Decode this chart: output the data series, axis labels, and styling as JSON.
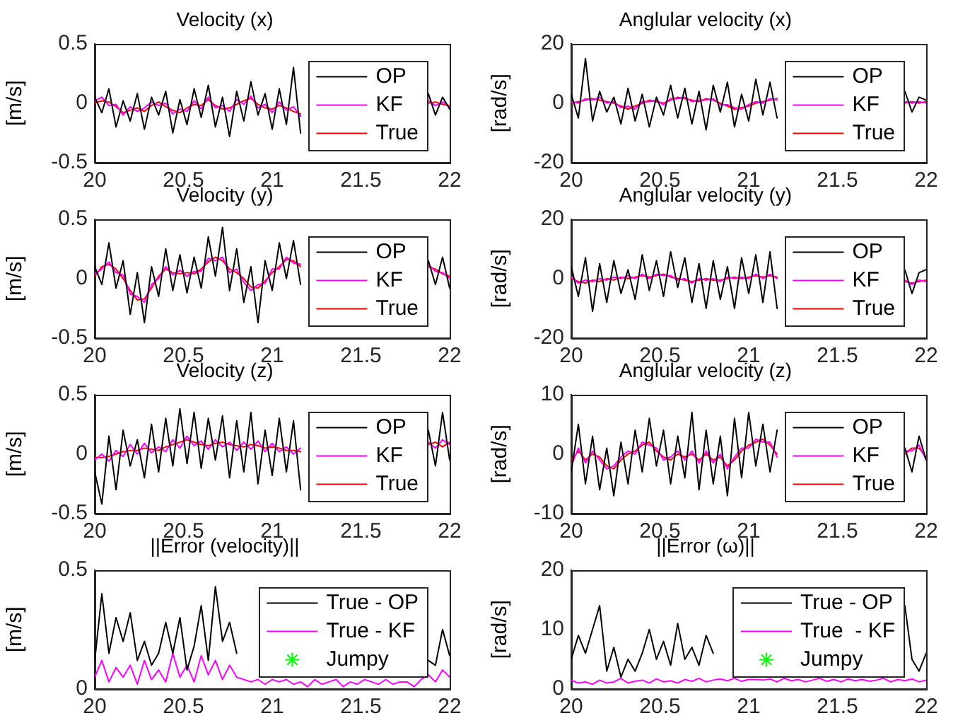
{
  "chart_data": [
    {
      "type": "line",
      "title": "Velocity (x)",
      "ylabel": "[m/s]",
      "legend": "right",
      "marker": "none",
      "x": [
        20,
        20.04,
        20.08,
        20.12,
        20.16,
        20.2,
        20.24,
        20.28,
        20.32,
        20.36,
        20.4,
        20.44,
        20.48,
        20.52,
        20.56,
        20.6,
        20.64,
        20.68,
        20.72,
        20.76,
        20.8,
        20.84,
        20.88,
        20.92,
        20.96,
        21,
        21.04,
        21.08,
        21.12,
        21.16,
        21.2,
        21.24,
        21.28,
        21.32,
        21.36,
        21.4,
        21.44,
        21.48,
        21.52,
        21.56,
        21.6,
        21.64,
        21.68,
        21.72,
        21.76,
        21.8,
        21.84,
        21.88,
        21.92,
        21.96,
        22
      ],
      "xlim": [
        20,
        22
      ],
      "xticks": [
        20,
        20.5,
        21,
        21.5,
        22
      ],
      "ylim": [
        -0.5,
        0.5
      ],
      "yticks": [
        -0.5,
        0,
        0.5
      ],
      "series": [
        {
          "name": "OP",
          "color": "#000000",
          "values": [
            0.05,
            -0.08,
            0.12,
            -0.2,
            0.02,
            -0.15,
            0.08,
            -0.22,
            0.05,
            -0.1,
            0.1,
            -0.25,
            0.03,
            -0.18,
            0.12,
            -0.12,
            0.15,
            -0.2,
            0.05,
            -0.28,
            0.1,
            -0.15,
            0.18,
            -0.1,
            0.08,
            -0.22,
            0.12,
            -0.18,
            0.3,
            -0.25,
            null,
            null,
            null,
            null,
            null,
            null,
            null,
            null,
            null,
            null,
            null,
            null,
            null,
            null,
            null,
            null,
            null,
            0.08,
            -0.1,
            0.05,
            -0.05
          ]
        },
        {
          "name": "KF",
          "color": "#ff00ff",
          "values": [
            0.02,
            0.05,
            -0.02,
            -0.01,
            -0.1,
            -0.03,
            -0.07,
            -0.04,
            0.01,
            -0.02,
            0,
            -0.09,
            -0.05,
            -0.07,
            0.02,
            -0.05,
            0.05,
            -0.04,
            -0.02,
            -0.07,
            0.03,
            -0.01,
            0.06,
            -0.04,
            -0.01,
            -0.08,
            0.01,
            -0.06,
            -0.03,
            -0.11,
            null,
            null,
            null,
            null,
            null,
            null,
            null,
            null,
            null,
            null,
            null,
            null,
            null,
            null,
            null,
            null,
            null,
            0.02,
            -0.02,
            0.01,
            -0.03
          ]
        },
        {
          "name": "True",
          "color": "#ff0000",
          "values": [
            0,
            0.02,
            0.01,
            -0.03,
            -0.08,
            -0.06,
            -0.04,
            -0.07,
            -0.02,
            0.01,
            -0.03,
            -0.06,
            -0.08,
            -0.04,
            -0.01,
            -0.02,
            0.03,
            -0.02,
            -0.05,
            -0.04,
            -0.01,
            0.02,
            0.04,
            -0.01,
            -0.04,
            -0.05,
            -0.02,
            -0.04,
            -0.07,
            -0.09,
            null,
            null,
            null,
            null,
            null,
            null,
            null,
            null,
            null,
            null,
            null,
            null,
            null,
            null,
            null,
            null,
            null,
            0,
            0.01,
            -0.01,
            -0.02
          ]
        }
      ]
    },
    {
      "type": "line",
      "title": "Anglular velocity (x)",
      "ylabel": "[rad/s]",
      "legend": "right",
      "marker": "none",
      "x": [
        20,
        20.04,
        20.08,
        20.12,
        20.16,
        20.2,
        20.24,
        20.28,
        20.32,
        20.36,
        20.4,
        20.44,
        20.48,
        20.52,
        20.56,
        20.6,
        20.64,
        20.68,
        20.72,
        20.76,
        20.8,
        20.84,
        20.88,
        20.92,
        20.96,
        21,
        21.04,
        21.08,
        21.12,
        21.16,
        21.2,
        21.24,
        21.28,
        21.32,
        21.36,
        21.4,
        21.44,
        21.48,
        21.52,
        21.56,
        21.6,
        21.64,
        21.68,
        21.72,
        21.76,
        21.8,
        21.84,
        21.88,
        21.92,
        21.96,
        22
      ],
      "xlim": [
        20,
        22
      ],
      "xticks": [
        20,
        20.5,
        21,
        21.5,
        22
      ],
      "ylim": [
        -20,
        20
      ],
      "yticks": [
        -20,
        0,
        20
      ],
      "series": [
        {
          "name": "OP",
          "color": "#000000",
          "values": [
            3,
            -5,
            15,
            -6,
            4,
            -3,
            2,
            -7,
            5,
            -6,
            3,
            -8,
            2,
            -4,
            6,
            -5,
            5,
            -7,
            4,
            -9,
            6,
            -3,
            7,
            -8,
            3,
            -6,
            8,
            -4,
            7,
            -5,
            null,
            null,
            null,
            null,
            null,
            null,
            null,
            null,
            null,
            null,
            null,
            null,
            null,
            null,
            null,
            null,
            null,
            4,
            -3,
            2,
            1
          ]
        },
        {
          "name": "KF",
          "color": "#ff00ff",
          "values": [
            0.5,
            0,
            1.5,
            1,
            2,
            0,
            0.5,
            -1.5,
            -1,
            -2,
            0.5,
            0.5,
            1,
            -0.5,
            1.5,
            1.5,
            2,
            0.5,
            1,
            1,
            1.5,
            -0.5,
            -0.5,
            -1.5,
            -2,
            -0.5,
            0.5,
            0,
            1.5,
            1,
            null,
            null,
            null,
            null,
            null,
            null,
            null,
            null,
            null,
            null,
            null,
            null,
            null,
            null,
            null,
            null,
            null,
            0.5,
            0,
            0.5,
            0
          ]
        },
        {
          "name": "True",
          "color": "#ff0000",
          "values": [
            0,
            0.5,
            1,
            1.5,
            1,
            0.5,
            0,
            -1,
            -2,
            -1,
            0,
            1,
            0.5,
            0,
            1,
            2,
            1.5,
            1,
            0.5,
            1.5,
            1,
            0,
            -1,
            -2,
            -1.5,
            -1,
            0,
            0.5,
            1,
            1.5,
            null,
            null,
            null,
            null,
            null,
            null,
            null,
            null,
            null,
            null,
            null,
            null,
            null,
            null,
            null,
            null,
            null,
            0,
            0.5,
            0,
            0.5
          ]
        }
      ]
    },
    {
      "type": "line",
      "title": "Velocity (y)",
      "ylabel": "[m/s]",
      "legend": "right",
      "marker": "none",
      "x": [
        20,
        20.04,
        20.08,
        20.12,
        20.16,
        20.2,
        20.24,
        20.28,
        20.32,
        20.36,
        20.4,
        20.44,
        20.48,
        20.52,
        20.56,
        20.6,
        20.64,
        20.68,
        20.72,
        20.76,
        20.8,
        20.84,
        20.88,
        20.92,
        20.96,
        21,
        21.04,
        21.08,
        21.12,
        21.16,
        21.2,
        21.24,
        21.28,
        21.32,
        21.36,
        21.4,
        21.44,
        21.48,
        21.52,
        21.56,
        21.6,
        21.64,
        21.68,
        21.72,
        21.76,
        21.8,
        21.84,
        21.88,
        21.92,
        21.96,
        22
      ],
      "xlim": [
        20,
        22
      ],
      "xticks": [
        20,
        20.5,
        21,
        21.5,
        22
      ],
      "ylim": [
        -0.5,
        0.5
      ],
      "yticks": [
        -0.5,
        0,
        0.5
      ],
      "series": [
        {
          "name": "OP",
          "color": "#000000",
          "values": [
            0.1,
            -0.05,
            0.3,
            -0.08,
            0.15,
            -0.3,
            0.05,
            -0.37,
            0.1,
            -0.15,
            0.25,
            -0.1,
            0.2,
            -0.12,
            0.18,
            -0.08,
            0.35,
            0.02,
            0.43,
            -0.1,
            0.25,
            -0.2,
            0.1,
            -0.37,
            0.15,
            -0.1,
            0.3,
            0,
            0.32,
            -0.05,
            null,
            null,
            null,
            null,
            null,
            null,
            null,
            null,
            null,
            null,
            null,
            null,
            null,
            null,
            null,
            null,
            null,
            0.15,
            -0.05,
            0.18,
            -0.08
          ]
        },
        {
          "name": "KF",
          "color": "#ff00ff",
          "values": [
            0.04,
            0.08,
            0.14,
            0.05,
            0.03,
            -0.13,
            -0.15,
            -0.2,
            -0.05,
            0,
            0.1,
            0.03,
            0.07,
            0.02,
            0.06,
            0.06,
            0.17,
            0.15,
            0.18,
            0.05,
            0.08,
            -0.03,
            -0.1,
            -0.05,
            -0.04,
            0.08,
            0.08,
            0.18,
            0.13,
            0.12,
            null,
            null,
            null,
            null,
            null,
            null,
            null,
            null,
            null,
            null,
            null,
            null,
            null,
            null,
            null,
            null,
            null,
            0.12,
            0.06,
            0.05,
            0
          ]
        },
        {
          "name": "True",
          "color": "#ff0000",
          "values": [
            0.02,
            0.1,
            0.12,
            0.08,
            0,
            -0.1,
            -0.18,
            -0.17,
            -0.08,
            0.02,
            0.08,
            0.05,
            0.04,
            0.05,
            0.04,
            0.08,
            0.14,
            0.18,
            0.15,
            0.08,
            0.05,
            0,
            -0.07,
            -0.08,
            -0.02,
            0.05,
            0.1,
            0.16,
            0.15,
            0.1,
            null,
            null,
            null,
            null,
            null,
            null,
            null,
            null,
            null,
            null,
            null,
            null,
            null,
            null,
            null,
            null,
            null,
            0.1,
            0.08,
            0.04,
            0.02
          ]
        }
      ]
    },
    {
      "type": "line",
      "title": "Anglular velocity (y)",
      "ylabel": "[rad/s]",
      "legend": "right",
      "marker": "none",
      "x": [
        20,
        20.04,
        20.08,
        20.12,
        20.16,
        20.2,
        20.24,
        20.28,
        20.32,
        20.36,
        20.4,
        20.44,
        20.48,
        20.52,
        20.56,
        20.6,
        20.64,
        20.68,
        20.72,
        20.76,
        20.8,
        20.84,
        20.88,
        20.92,
        20.96,
        21,
        21.04,
        21.08,
        21.12,
        21.16,
        21.2,
        21.24,
        21.28,
        21.32,
        21.36,
        21.4,
        21.44,
        21.48,
        21.52,
        21.56,
        21.6,
        21.64,
        21.68,
        21.72,
        21.76,
        21.8,
        21.84,
        21.88,
        21.92,
        21.96,
        22
      ],
      "xlim": [
        20,
        22
      ],
      "xticks": [
        20,
        20.5,
        21,
        21.5,
        22
      ],
      "ylim": [
        -20,
        20
      ],
      "yticks": [
        -20,
        0,
        20
      ],
      "series": [
        {
          "name": "OP",
          "color": "#000000",
          "values": [
            4,
            -6,
            7,
            -11,
            5,
            -8,
            6,
            -5,
            3,
            -7,
            8,
            -4,
            6,
            -6,
            9,
            -3,
            7,
            -8,
            5,
            -10,
            6,
            -7,
            4,
            -10,
            7,
            -5,
            8,
            -8,
            9,
            -10,
            null,
            null,
            null,
            null,
            null,
            null,
            null,
            null,
            null,
            null,
            null,
            null,
            null,
            null,
            null,
            null,
            null,
            3,
            -5,
            2,
            3
          ]
        },
        {
          "name": "KF",
          "color": "#ff00ff",
          "values": [
            0.5,
            -1.5,
            -0.5,
            -1,
            0,
            -0.5,
            0.5,
            0,
            1,
            0,
            1.5,
            0,
            1.5,
            1,
            1,
            -0.5,
            0,
            -1.5,
            0,
            -0.5,
            0,
            -1,
            0.5,
            0,
            0.5,
            0,
            1.5,
            0,
            1.5,
            0,
            null,
            null,
            null,
            null,
            null,
            null,
            null,
            null,
            null,
            null,
            null,
            null,
            null,
            null,
            null,
            null,
            null,
            -0.5,
            -2,
            -0.5,
            -1
          ]
        },
        {
          "name": "True",
          "color": "#ff0000",
          "values": [
            0,
            -1,
            -1.5,
            -0.5,
            -1,
            0,
            -0.5,
            0.5,
            0,
            0.5,
            1,
            0.5,
            1,
            1.5,
            0.5,
            0,
            -0.5,
            -1,
            -0.5,
            0,
            -0.5,
            -0.5,
            0,
            0.5,
            0,
            0.5,
            1,
            0.5,
            1,
            0.5,
            null,
            null,
            null,
            null,
            null,
            null,
            null,
            null,
            null,
            null,
            null,
            null,
            null,
            null,
            null,
            null,
            null,
            -1,
            -1.5,
            -1,
            -0.5
          ]
        }
      ]
    },
    {
      "type": "line",
      "title": "Velocity (z)",
      "ylabel": "[m/s]",
      "legend": "right",
      "marker": "none",
      "x": [
        20,
        20.04,
        20.08,
        20.12,
        20.16,
        20.2,
        20.24,
        20.28,
        20.32,
        20.36,
        20.4,
        20.44,
        20.48,
        20.52,
        20.56,
        20.6,
        20.64,
        20.68,
        20.72,
        20.76,
        20.8,
        20.84,
        20.88,
        20.92,
        20.96,
        21,
        21.04,
        21.08,
        21.12,
        21.16,
        21.2,
        21.24,
        21.28,
        21.32,
        21.36,
        21.4,
        21.44,
        21.48,
        21.52,
        21.56,
        21.6,
        21.64,
        21.68,
        21.72,
        21.76,
        21.8,
        21.84,
        21.88,
        21.92,
        21.96,
        22
      ],
      "xlim": [
        20,
        22
      ],
      "xticks": [
        20,
        20.5,
        21,
        21.5,
        22
      ],
      "ylim": [
        -0.5,
        0.5
      ],
      "yticks": [
        -0.5,
        0,
        0.5
      ],
      "series": [
        {
          "name": "OP",
          "color": "#000000",
          "values": [
            -0.15,
            -0.42,
            0.15,
            -0.3,
            0.2,
            -0.1,
            0.12,
            -0.2,
            0.25,
            -0.15,
            0.3,
            -0.1,
            0.38,
            -0.08,
            0.35,
            -0.12,
            0.3,
            -0.05,
            0.32,
            -0.2,
            0.28,
            -0.15,
            0.35,
            -0.25,
            0.2,
            -0.18,
            0.3,
            -0.15,
            0.28,
            -0.3,
            null,
            null,
            null,
            null,
            null,
            null,
            null,
            null,
            null,
            null,
            null,
            null,
            null,
            null,
            null,
            null,
            null,
            0.2,
            -0.1,
            0.35,
            -0.05
          ]
        },
        {
          "name": "KF",
          "color": "#ff00ff",
          "values": [
            -0.05,
            0,
            -0.06,
            0.03,
            -0.02,
            0.08,
            0,
            0.09,
            0.01,
            0.06,
            0.02,
            0.12,
            0.05,
            0.15,
            0.07,
            0.11,
            0.04,
            0.12,
            0.06,
            0.1,
            0.03,
            0.1,
            0.04,
            0.11,
            0.02,
            0.09,
            0.02,
            0.06,
            0,
            0.05,
            null,
            null,
            null,
            null,
            null,
            null,
            null,
            null,
            null,
            null,
            null,
            null,
            null,
            null,
            null,
            null,
            null,
            0.1,
            0.05,
            0.12,
            0.08
          ]
        },
        {
          "name": "True",
          "color": "#ff0000",
          "values": [
            -0.03,
            -0.03,
            -0.02,
            0,
            0.02,
            0.03,
            0.03,
            0.05,
            0.04,
            0.03,
            0.06,
            0.08,
            0.1,
            0.12,
            0.1,
            0.08,
            0.07,
            0.09,
            0.1,
            0.08,
            0.07,
            0.06,
            0.08,
            0.07,
            0.05,
            0.06,
            0.05,
            0.03,
            0.03,
            0.02,
            null,
            null,
            null,
            null,
            null,
            null,
            null,
            null,
            null,
            null,
            null,
            null,
            null,
            null,
            null,
            null,
            null,
            0.08,
            0.1,
            0.06,
            0.1
          ]
        }
      ]
    },
    {
      "type": "line",
      "title": "Anglular velocity (z)",
      "ylabel": "[rad/s]",
      "legend": "right",
      "marker": "none",
      "x": [
        20,
        20.04,
        20.08,
        20.12,
        20.16,
        20.2,
        20.24,
        20.28,
        20.32,
        20.36,
        20.4,
        20.44,
        20.48,
        20.52,
        20.56,
        20.6,
        20.64,
        20.68,
        20.72,
        20.76,
        20.8,
        20.84,
        20.88,
        20.92,
        20.96,
        21,
        21.04,
        21.08,
        21.12,
        21.16,
        21.2,
        21.24,
        21.28,
        21.32,
        21.36,
        21.4,
        21.44,
        21.48,
        21.52,
        21.56,
        21.6,
        21.64,
        21.68,
        21.72,
        21.76,
        21.8,
        21.84,
        21.88,
        21.92,
        21.96,
        22
      ],
      "xlim": [
        20,
        22
      ],
      "xticks": [
        20,
        20.5,
        21,
        21.5,
        22
      ],
      "ylim": [
        -10,
        10
      ],
      "yticks": [
        -10,
        0,
        10
      ],
      "series": [
        {
          "name": "OP",
          "color": "#000000",
          "values": [
            -3,
            5,
            -5,
            3,
            -6,
            1,
            -7,
            2,
            -5,
            4,
            -3,
            6,
            -2,
            4,
            -5,
            3,
            -4,
            7,
            -6,
            4,
            -5,
            3,
            -7,
            6,
            -4,
            7,
            -2,
            5,
            -3,
            4,
            null,
            null,
            null,
            null,
            null,
            null,
            null,
            null,
            null,
            null,
            null,
            null,
            null,
            null,
            null,
            null,
            null,
            1,
            -3,
            3,
            -1
          ]
        },
        {
          "name": "KF",
          "color": "#ff00ff",
          "values": [
            -2,
            1,
            -1.5,
            0.5,
            -1,
            -2.5,
            -2,
            -0.5,
            0.5,
            0,
            2,
            1.5,
            1,
            -1,
            -0.5,
            0.5,
            -1,
            0.5,
            -1.5,
            0.5,
            -1.5,
            0,
            -2.5,
            -0.5,
            1,
            1,
            2.5,
            2,
            2,
            -0.5,
            null,
            null,
            null,
            null,
            null,
            null,
            null,
            null,
            null,
            null,
            null,
            null,
            null,
            null,
            null,
            null,
            null,
            0.5,
            0.5,
            1.5,
            -1
          ]
        },
        {
          "name": "True",
          "color": "#ff0000",
          "values": [
            -1,
            0.5,
            -1,
            0,
            -0.5,
            -2,
            -2.5,
            -1,
            0,
            0.5,
            1.5,
            2,
            0.5,
            -0.5,
            -1,
            0,
            -0.5,
            0,
            -1,
            0,
            -1,
            -0.5,
            -2,
            -1,
            0.5,
            1.5,
            2,
            2.5,
            1.5,
            0,
            null,
            null,
            null,
            null,
            null,
            null,
            null,
            null,
            null,
            null,
            null,
            null,
            null,
            null,
            null,
            null,
            null,
            0,
            1,
            1,
            -0.5
          ]
        }
      ]
    },
    {
      "type": "line",
      "title": "||Error (velocity)||",
      "ylabel": "[m/s]",
      "legend": "right",
      "marker": "none",
      "x": [
        20,
        20.04,
        20.08,
        20.12,
        20.16,
        20.2,
        20.24,
        20.28,
        20.32,
        20.36,
        20.4,
        20.44,
        20.48,
        20.52,
        20.56,
        20.6,
        20.64,
        20.68,
        20.72,
        20.76,
        20.8,
        20.84,
        20.88,
        20.92,
        20.96,
        21,
        21.04,
        21.08,
        21.12,
        21.16,
        21.2,
        21.24,
        21.28,
        21.32,
        21.36,
        21.4,
        21.44,
        21.48,
        21.52,
        21.56,
        21.6,
        21.64,
        21.68,
        21.72,
        21.76,
        21.8,
        21.84,
        21.88,
        21.92,
        21.96,
        22
      ],
      "xlim": [
        20,
        22
      ],
      "xticks": [
        20,
        20.5,
        21,
        21.5,
        22
      ],
      "ylim": [
        0,
        0.5
      ],
      "yticks": [
        0,
        0.5
      ],
      "series": [
        {
          "name": "True - OP",
          "color": "#000000",
          "values": [
            0.12,
            0.4,
            0.15,
            0.3,
            0.2,
            0.32,
            0.12,
            0.2,
            0.1,
            0.15,
            0.28,
            0.15,
            0.3,
            0.08,
            0.18,
            0.35,
            0.12,
            0.43,
            0.2,
            0.28,
            0.15,
            null,
            null,
            null,
            null,
            null,
            null,
            null,
            null,
            null,
            null,
            null,
            null,
            null,
            null,
            null,
            null,
            null,
            null,
            null,
            null,
            null,
            null,
            null,
            null,
            null,
            null,
            0.12,
            0.1,
            0.25,
            0.14
          ]
        },
        {
          "name": "True - KF",
          "color": "#ff00ff",
          "values": [
            0.05,
            0.12,
            0.03,
            0.09,
            0.05,
            0.1,
            0.02,
            0.12,
            0.04,
            0.08,
            0.03,
            0.15,
            0.05,
            0.1,
            0.03,
            0.14,
            0.06,
            0.12,
            0.04,
            0.1,
            0.05,
            0.04,
            0.03,
            0.04,
            0.02,
            0.04,
            0.03,
            0.04,
            0.02,
            0.03,
            0.01,
            0.04,
            0.02,
            0.03,
            0.04,
            0.01,
            0.03,
            0.02,
            0.04,
            0.03,
            0.02,
            0.04,
            0.02,
            0.03,
            0.03,
            0.01,
            0.04,
            0.06,
            0.03,
            0.08,
            0.05
          ]
        },
        {
          "name": "Jumpy",
          "type": "scatter",
          "marker": "star",
          "color": "#00ff00",
          "values": [
            null,
            null,
            null,
            null,
            null,
            null,
            null,
            null,
            null,
            null,
            null,
            null,
            null,
            null,
            null,
            null,
            null,
            null,
            null,
            null,
            null,
            null,
            null,
            null,
            null,
            null,
            null,
            null,
            null,
            null,
            null,
            null,
            null,
            null,
            null,
            null,
            null,
            null,
            null,
            null,
            null,
            null,
            null,
            null,
            null,
            null,
            null,
            null,
            null,
            null,
            null
          ]
        }
      ]
    },
    {
      "type": "line",
      "title": "||Error (ω)||",
      "ylabel": "[rad/s]",
      "legend": "right",
      "marker": "none",
      "x": [
        20,
        20.04,
        20.08,
        20.12,
        20.16,
        20.2,
        20.24,
        20.28,
        20.32,
        20.36,
        20.4,
        20.44,
        20.48,
        20.52,
        20.56,
        20.6,
        20.64,
        20.68,
        20.72,
        20.76,
        20.8,
        20.84,
        20.88,
        20.92,
        20.96,
        21,
        21.04,
        21.08,
        21.12,
        21.16,
        21.2,
        21.24,
        21.28,
        21.32,
        21.36,
        21.4,
        21.44,
        21.48,
        21.52,
        21.56,
        21.6,
        21.64,
        21.68,
        21.72,
        21.76,
        21.8,
        21.84,
        21.88,
        21.92,
        21.96,
        22
      ],
      "xlim": [
        20,
        22
      ],
      "xticks": [
        20,
        20.5,
        21,
        21.5,
        22
      ],
      "ylim": [
        0,
        20
      ],
      "yticks": [
        0,
        10,
        20
      ],
      "series": [
        {
          "name": "True - OP",
          "color": "#000000",
          "values": [
            5,
            9,
            6,
            10,
            14,
            3,
            7,
            2,
            5,
            3,
            6,
            10,
            5,
            8,
            4,
            11,
            5,
            7,
            4,
            9,
            6,
            null,
            null,
            null,
            null,
            null,
            null,
            null,
            null,
            null,
            null,
            null,
            null,
            null,
            null,
            null,
            null,
            null,
            null,
            null,
            null,
            null,
            null,
            null,
            null,
            null,
            null,
            14,
            5,
            3,
            6
          ]
        },
        {
          "name": "True  - KF",
          "color": "#ff00ff",
          "values": [
            1.5,
            1,
            1.2,
            0.8,
            1.5,
            1,
            1.2,
            1.8,
            1,
            1.3,
            1.5,
            1,
            1.7,
            1.2,
            1.4,
            1,
            1.6,
            1.3,
            1.8,
            1.2,
            1.5,
            1.7,
            1.4,
            1.8,
            1.3,
            1.6,
            1.6,
            1.5,
            1.7,
            1.2,
            1.8,
            1.4,
            1.6,
            1.2,
            1.5,
            1.8,
            1.3,
            1.6,
            1.2,
            1.7,
            1.4,
            1.6,
            1.3,
            1.5,
            1.8,
            1.2,
            1.6,
            1.4,
            1.7,
            1.2,
            1.5
          ]
        },
        {
          "name": "Jumpy",
          "type": "scatter",
          "marker": "star",
          "color": "#00ff00",
          "values": [
            null,
            null,
            null,
            null,
            null,
            null,
            null,
            null,
            null,
            null,
            null,
            null,
            null,
            null,
            null,
            null,
            null,
            null,
            null,
            null,
            null,
            null,
            null,
            null,
            null,
            null,
            null,
            null,
            null,
            null,
            null,
            null,
            null,
            null,
            null,
            null,
            null,
            null,
            null,
            null,
            null,
            null,
            null,
            null,
            null,
            null,
            null,
            null,
            null,
            null,
            null
          ]
        }
      ]
    }
  ]
}
